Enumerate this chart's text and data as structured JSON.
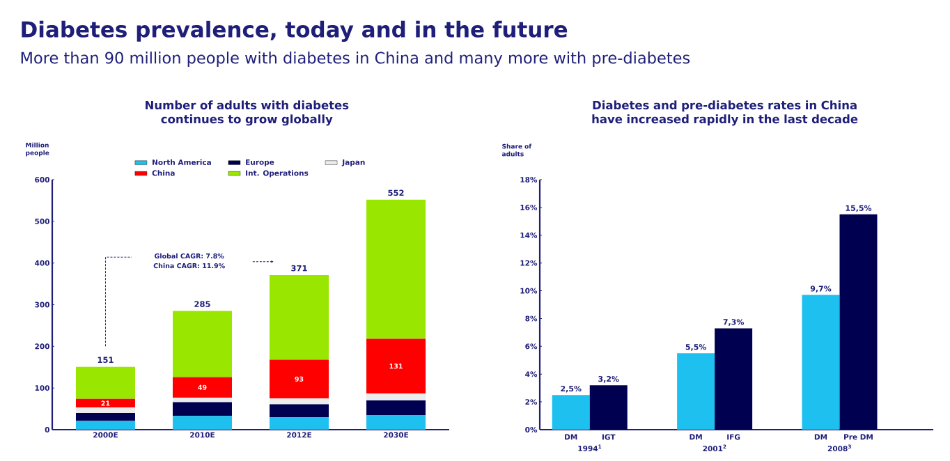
{
  "chart_data": [
    {
      "type": "other",
      "title": "Diabetes prevalence, today and in the future",
      "subtitle": "More than 90 million people with diabetes in China and many more with pre-diabetes"
    },
    {
      "type": "bar",
      "title": "Number of adults with diabetes continues to grow globally",
      "ylabel": "Million people",
      "stacked": true,
      "legend": "top",
      "categories": [
        "2000E",
        "2010E",
        "2012E",
        "2030E"
      ],
      "series": [
        {
          "name": "North America",
          "color": "#1ec0f0",
          "values": [
            21,
            33,
            30,
            35
          ]
        },
        {
          "name": "Europe",
          "color": "#000050",
          "values": [
            19,
            33,
            31,
            35
          ]
        },
        {
          "name": "Japan",
          "color": "#ececec",
          "values": [
            13,
            11,
            14,
            17
          ]
        },
        {
          "name": "China",
          "color": "#ff0000",
          "values": [
            21,
            49,
            93,
            131
          ],
          "value_labels": [
            "21",
            "49",
            "93",
            "131"
          ]
        },
        {
          "name": "Int. Operations",
          "color": "#99e600",
          "values": [
            77,
            159,
            203,
            334
          ]
        }
      ],
      "totals": [
        "151",
        "285",
        "371",
        "552"
      ],
      "ylim": [
        0,
        600
      ],
      "yticks": [
        0,
        100,
        200,
        300,
        400,
        500,
        600
      ],
      "annotations": [
        "Global CAGR: 7.8%",
        "China CAGR: 11.9%"
      ]
    },
    {
      "type": "bar",
      "title": "Diabetes and pre-diabetes rates in China have increased rapidly in the last decade",
      "ylabel": "Share of adults",
      "categories": [
        "1994$^{1}$",
        "2001$^{2}$",
        "2008$^{3}$"
      ],
      "series": [
        {
          "color": "#1ec0f0",
          "values": [
            2.5,
            5.5,
            9.7
          ],
          "value_labels": [
            "2,5%",
            "5,5%",
            "9,7%"
          ]
        },
        {
          "color": "#000050",
          "values": [
            3.2,
            7.3,
            15.5
          ],
          "value_labels": [
            "3,2%",
            "7,3%",
            "15,5%"
          ]
        }
      ],
      "ylim": [
        0,
        18
      ],
      "yticks": [
        {
          "value": 0,
          "label": "0%"
        },
        {
          "value": 2,
          "label": "2%"
        },
        {
          "value": 4,
          "label": "4%"
        },
        {
          "value": 6,
          "label": "6%"
        },
        {
          "value": 8,
          "label": "8%"
        },
        {
          "value": 10,
          "label": "10%"
        },
        {
          "value": 12,
          "label": "12%"
        },
        {
          "value": 14,
          "label": "14%"
        },
        {
          "value": 16,
          "label": "16%"
        },
        {
          "value": 18,
          "label": "18%"
        }
      ],
      "annotations": [
        "DM",
        "IGT",
        "DM",
        "IFG",
        "DM",
        "Pre DM"
      ]
    }
  ]
}
